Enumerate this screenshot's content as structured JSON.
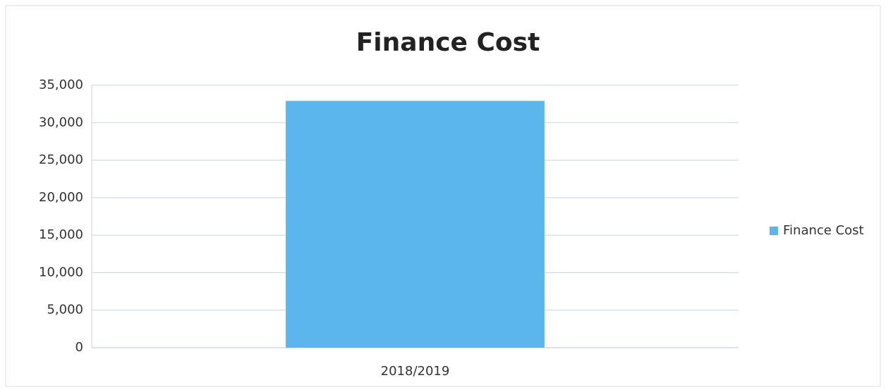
{
  "chart_data": {
    "type": "bar",
    "title": "Finance Cost",
    "categories": [
      "2018/2019"
    ],
    "series": [
      {
        "name": "Finance Cost",
        "color": "#5bb6ee",
        "values": [
          32900
        ]
      }
    ],
    "ylim": [
      0,
      35000
    ],
    "yticks": [
      0,
      {
        "value": 5000,
        "label": "5,000"
      },
      {
        "value": 10000,
        "label": "10,000"
      },
      {
        "value": 15000,
        "label": "15,000"
      },
      {
        "value": 20000,
        "label": "20,000"
      },
      {
        "value": 25000,
        "label": "25,000"
      },
      {
        "value": 30000,
        "label": "30,000"
      },
      {
        "value": 35000,
        "label": "35,000"
      }
    ],
    "grid": true,
    "legend": "right"
  }
}
